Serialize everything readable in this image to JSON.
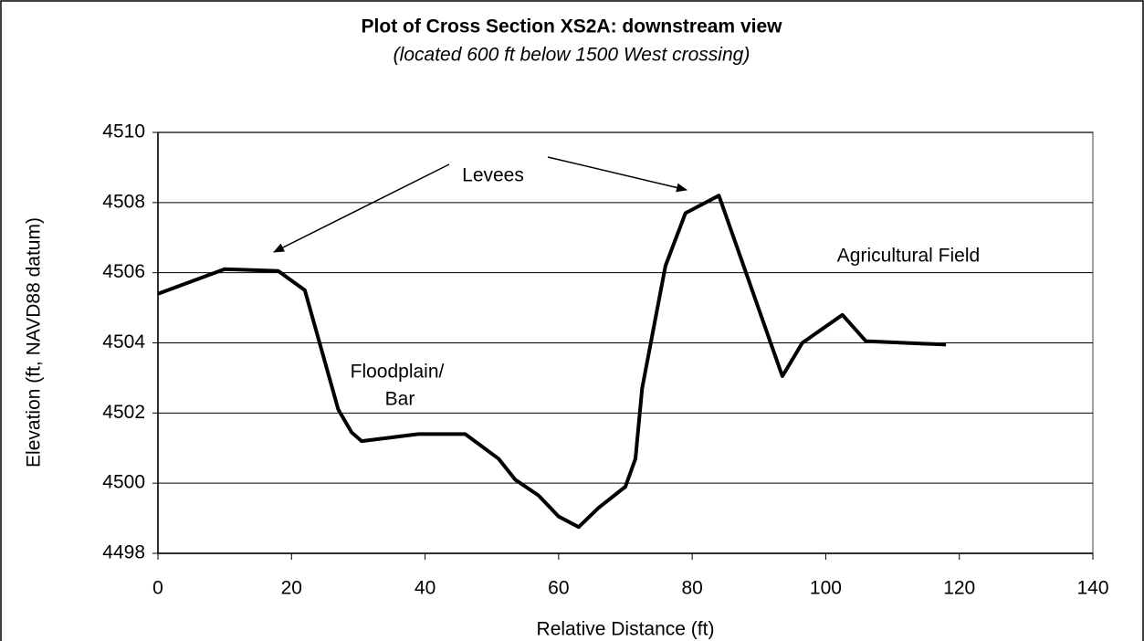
{
  "chart_data": {
    "type": "line",
    "title": "Plot of Cross Section XS2A: downstream view",
    "subtitle": "(located 600 ft below 1500 West crossing)",
    "x_label": "Relative Distance (ft)",
    "y_label": "Elevation (ft, NAVD88 datum)",
    "annotations": [
      "Levees",
      "Floodplain/",
      "Bar",
      "Agricultural Field"
    ],
    "x": [
      0,
      10,
      18,
      22,
      27,
      29,
      30.5,
      39,
      46,
      51,
      53.5,
      57,
      60,
      63,
      66,
      70,
      71.5,
      72.5,
      76,
      79,
      84,
      93.5,
      96.5,
      102.5,
      106,
      118
    ],
    "series": [
      {
        "name": "Cross Section XS2A",
        "color": "#000000",
        "values": [
          4505.4,
          4506.1,
          4506.05,
          4505.5,
          4502.1,
          4501.45,
          4501.2,
          4501.4,
          4501.4,
          4500.7,
          4500.1,
          4499.65,
          4499.05,
          4498.75,
          4499.3,
          4499.9,
          4500.7,
          4502.7,
          4506.2,
          4507.7,
          4508.2,
          4503.05,
          4504.0,
          4504.8,
          4504.05,
          4503.95
        ]
      }
    ],
    "xlim": [
      0,
      140
    ],
    "xticks": [
      0,
      20,
      40,
      60,
      80,
      100,
      120,
      140
    ],
    "ylim": [
      4498,
      4510
    ],
    "yticks": [
      4498,
      4500,
      4502,
      4504,
      4506,
      4508,
      4510
    ],
    "grid": true,
    "legend": false
  }
}
